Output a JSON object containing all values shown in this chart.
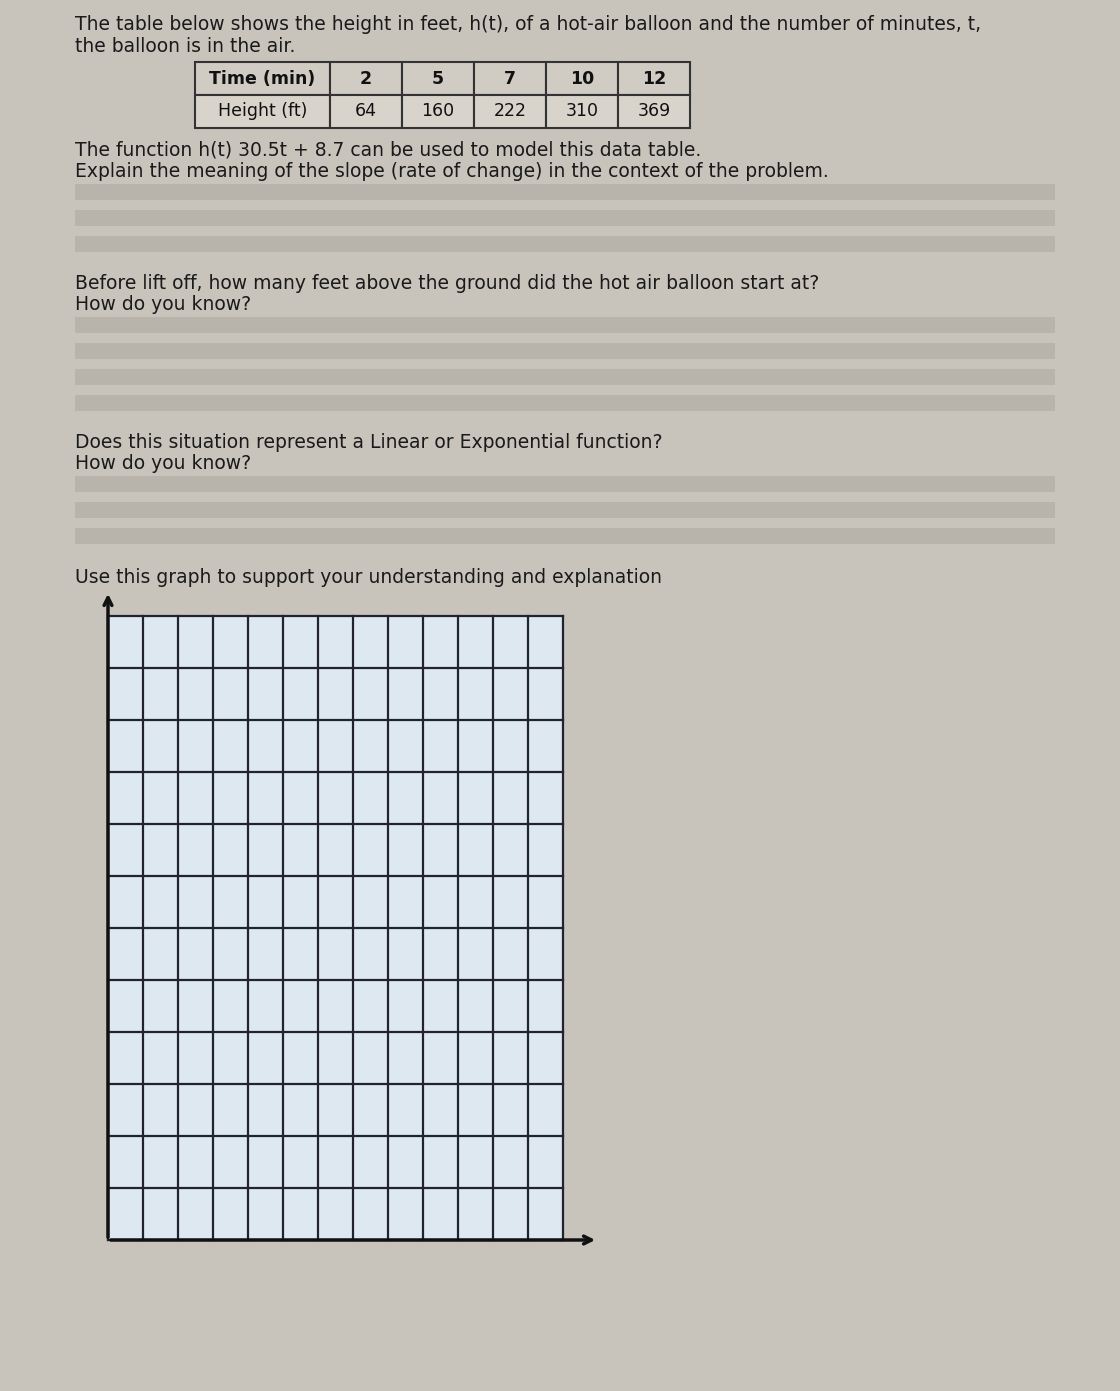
{
  "page_bg": "#c8c4bc",
  "grid_bg": "#dde8f0",
  "line_band_color": "#b8b4ac",
  "text_color": "#1a1a1a",
  "title_text1": "The table below shows the height in feet, h(t), of a hot-air balloon and the number of minutes, t,",
  "title_text2": "the balloon is in the air.",
  "table_headers": [
    "Time (min)",
    "2",
    "5",
    "7",
    "10",
    "12"
  ],
  "table_row2": [
    "Height (ft)",
    "64",
    "160",
    "222",
    "310",
    "369"
  ],
  "table_header_bg": "#d0ccc4",
  "table_row2_bg": "#d8d4cc",
  "function_text": "The function h(t) 30.5t + 8.7 can be used to model this data table.",
  "q1_text": "Explain the meaning of the slope (rate of change) in the context of the problem.",
  "q2_text1": "Before lift off, how many feet above the ground did the hot air balloon start at?",
  "q2_text2": "How do you know?",
  "q3_text1": "Does this situation represent a Linear or Exponential function?",
  "q3_text2": "How do you know?",
  "graph_label": "Use this graph to support your understanding and explanation",
  "grid_cols": 13,
  "grid_rows": 12,
  "axis_color": "#111111",
  "grid_line_color": "#222233"
}
